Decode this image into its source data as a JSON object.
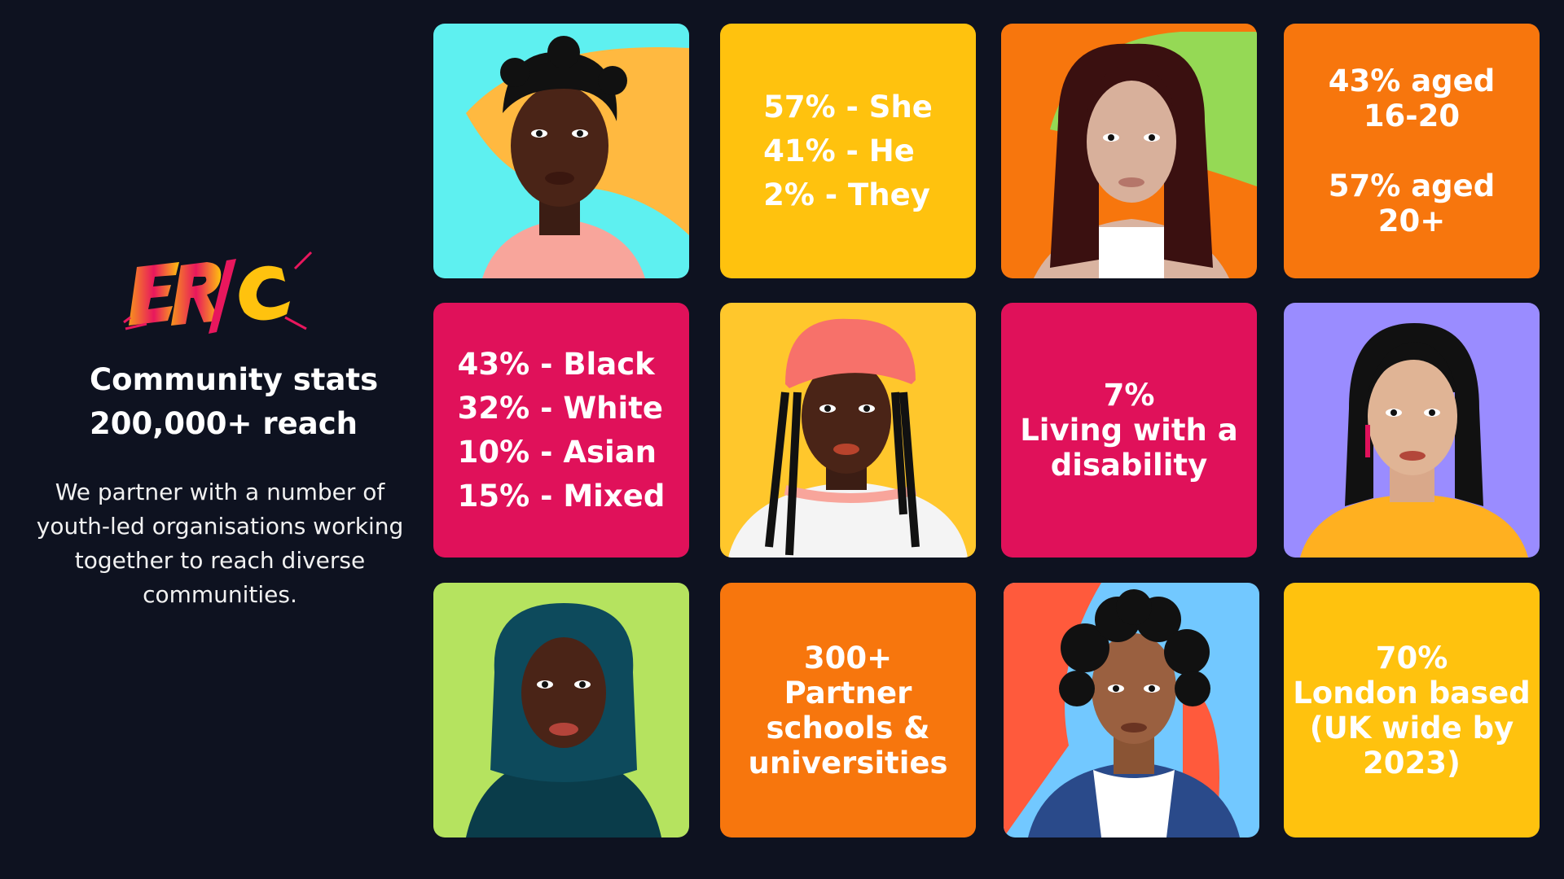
{
  "brand": {
    "logo_text": "ERIC",
    "logo_colors": [
      "#f7941d",
      "#e8175d",
      "#ffc20e"
    ]
  },
  "intro": {
    "headline_line1": "Community stats",
    "headline_line2": "200,000+ reach",
    "description": "We partner with a number of youth-led organisations working together to reach diverse communities."
  },
  "stats": {
    "pronouns": [
      "57% - She",
      "41% - He",
      "2% - They"
    ],
    "age": {
      "line1": "43% aged",
      "line2": "16-20",
      "line3": "57% aged",
      "line4": "20+"
    },
    "ethnicity": [
      "43% - Black",
      "32% - White",
      "10% - Asian",
      "15% - Mixed"
    ],
    "disability": {
      "line1": "7%",
      "line2": "Living with a",
      "line3": "disability"
    },
    "partners": {
      "line1": "300+",
      "line2": "Partner",
      "line3": "schools &",
      "line4": "universities"
    },
    "location": {
      "line1": "70%",
      "line2": "London based",
      "line3": "(UK wide by",
      "line4": "2023)"
    }
  },
  "colors": {
    "background": "#0e1220",
    "yellow": "#ffc20e",
    "orange": "#f7760d",
    "magenta": "#e0115a",
    "cyan": "#5ef0f0",
    "lime": "#b5e35f",
    "violet": "#9a8cff",
    "sky": "#72c8ff",
    "green": "#95d955"
  }
}
